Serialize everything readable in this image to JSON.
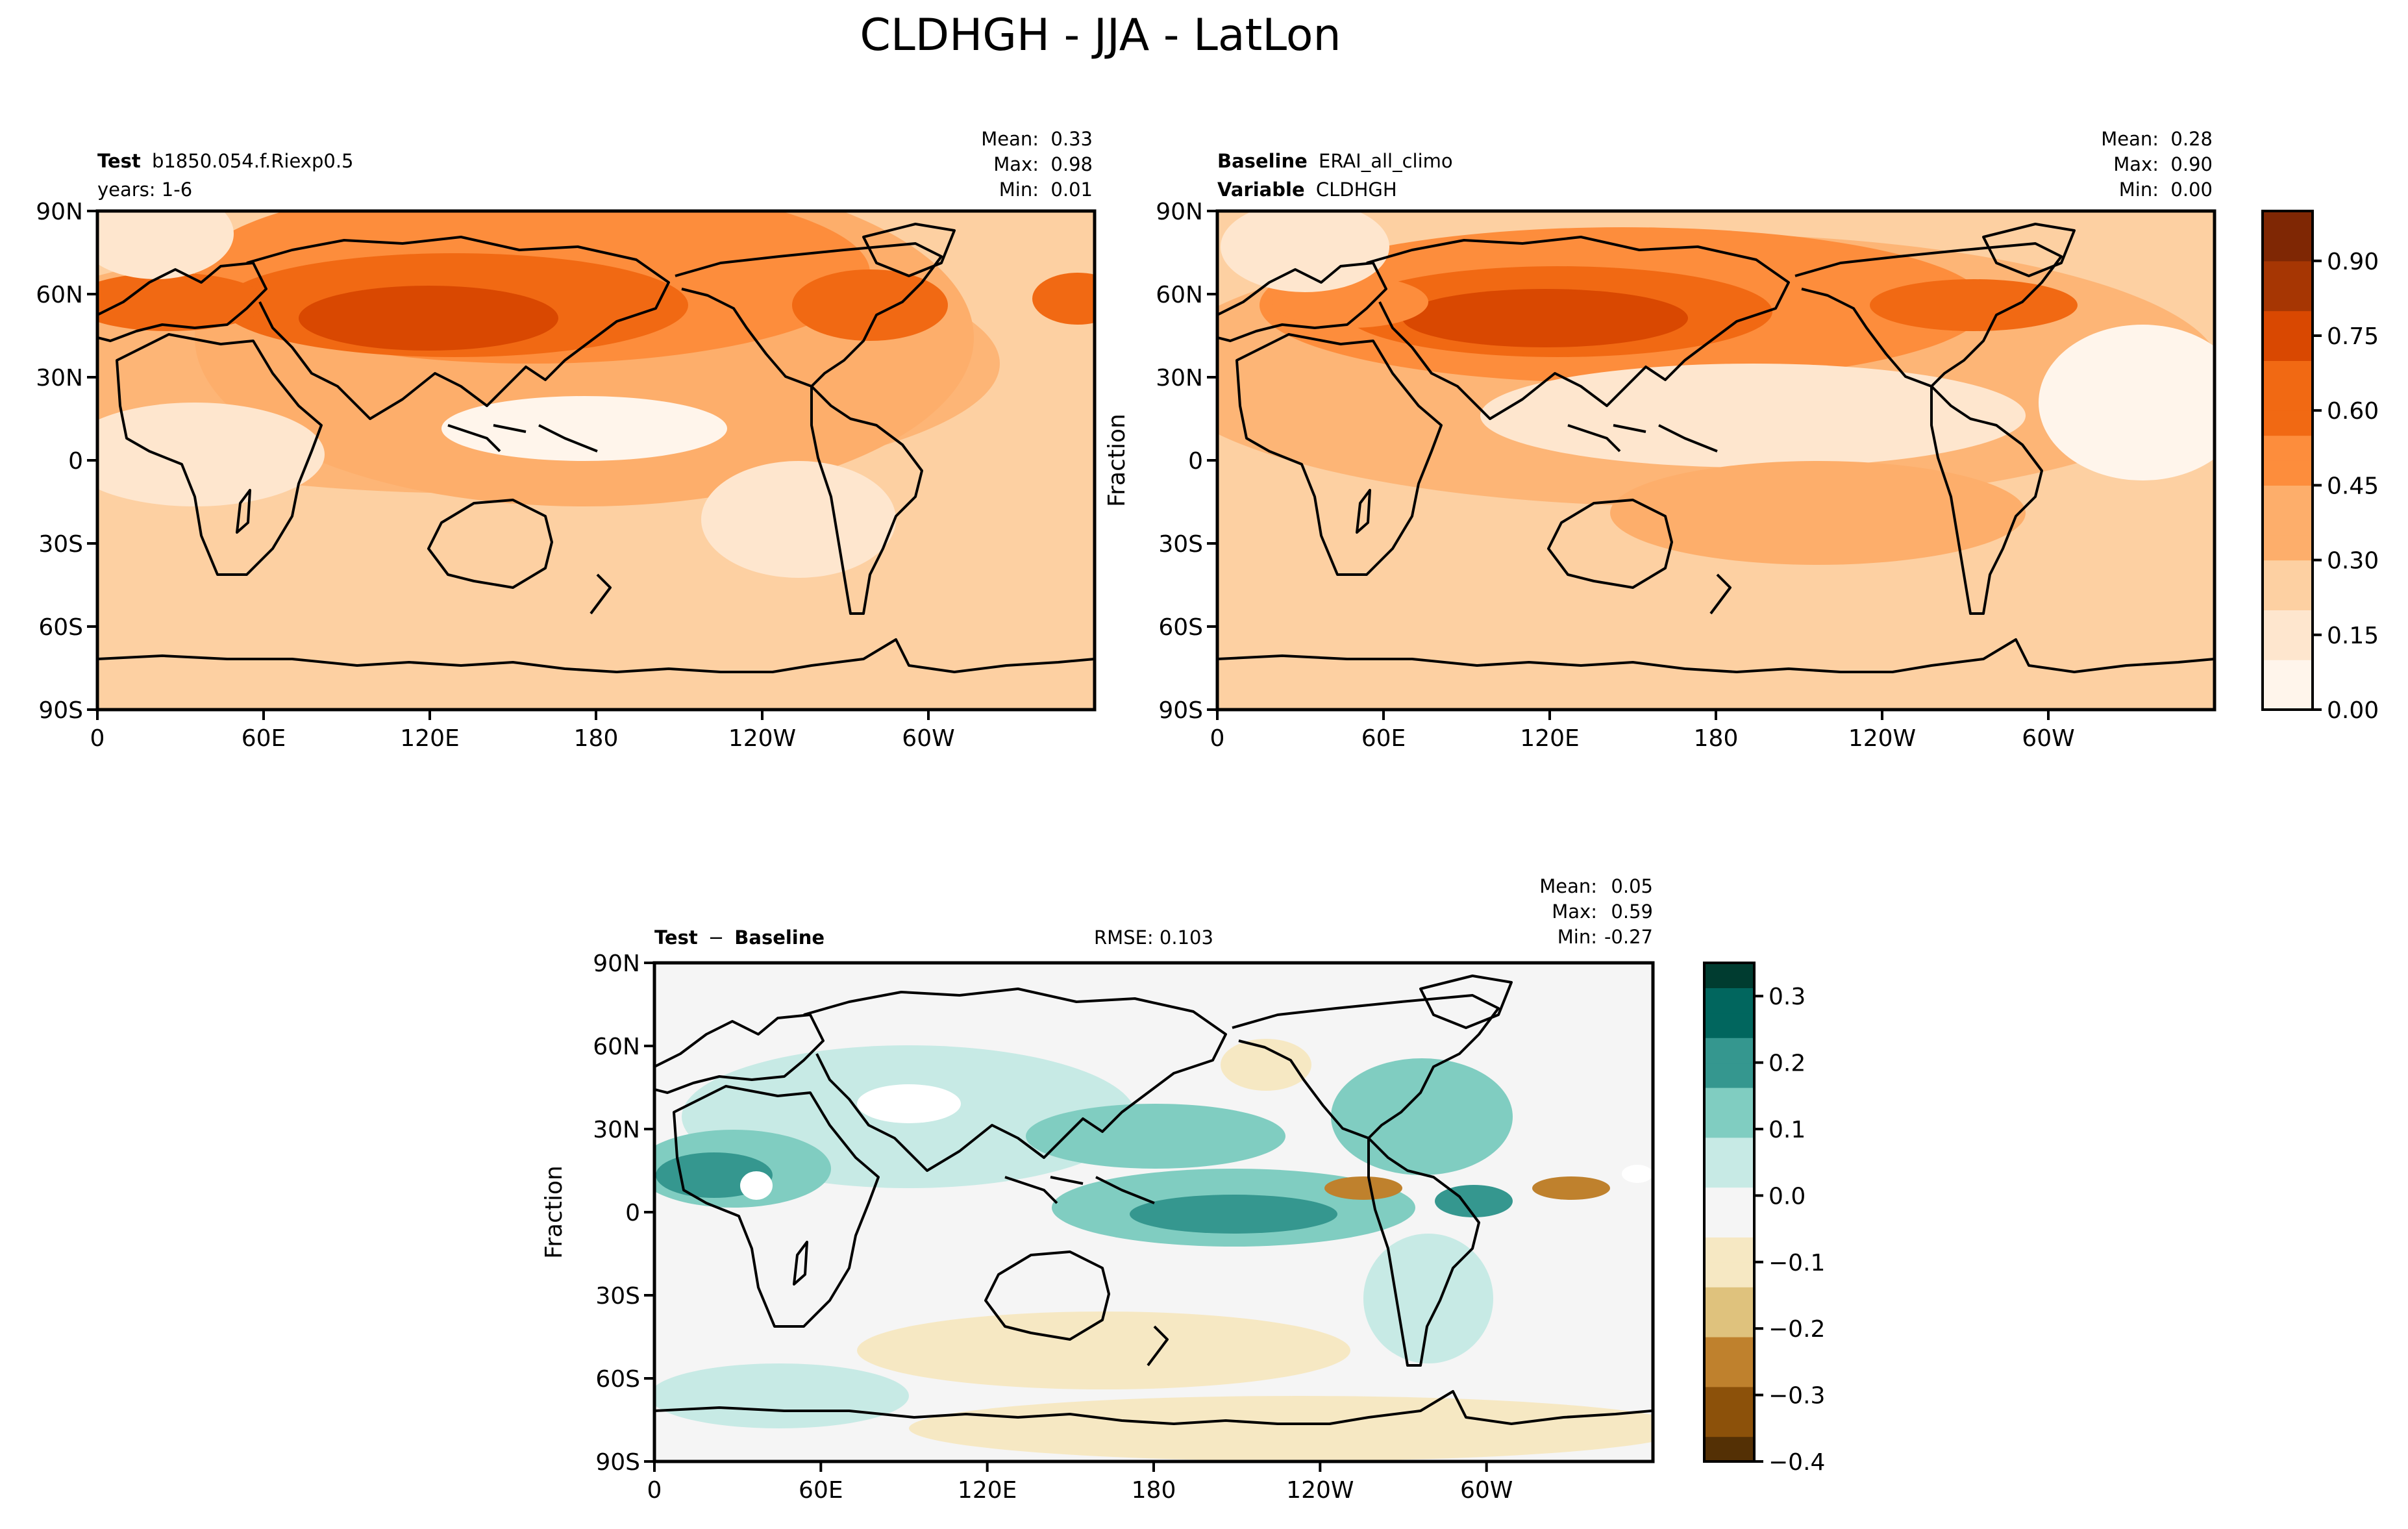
{
  "figure": {
    "title": "CLDHGH - JJA - LatLon"
  },
  "axes": {
    "lat_ticks": [
      "90N",
      "60N",
      "30N",
      "0",
      "30S",
      "60S",
      "90S"
    ],
    "lon_ticks": [
      "0",
      "60E",
      "120E",
      "180",
      "120W",
      "60W"
    ]
  },
  "panels": {
    "test": {
      "label_bold": "Test",
      "label_value": "b1850.054.f.Riexp0.5",
      "years": "years: 1-6",
      "stats": {
        "mean": "0.33",
        "max": "0.98",
        "min": "0.01"
      }
    },
    "baseline": {
      "label_bold": "Baseline",
      "label_value": "ERAI_all_climo",
      "variable_bold": "Variable",
      "variable_value": "CLDHGH",
      "ylabel": "Fraction",
      "stats": {
        "mean": "0.28",
        "max": "0.90",
        "min": "0.00"
      }
    },
    "diff": {
      "label_a": "Test",
      "label_op": "−",
      "label_b": "Baseline",
      "rmse": "RMSE: 0.103",
      "ylabel": "Fraction",
      "stats": {
        "mean": "0.05",
        "max": "0.59",
        "min": "-0.27"
      }
    }
  },
  "stat_labels": {
    "mean": "Mean:",
    "max": "Max:",
    "min": "Min:"
  },
  "colorbars": {
    "seq": {
      "ticks": [
        "0.00",
        "0.15",
        "0.30",
        "0.45",
        "0.60",
        "0.75",
        "0.90"
      ],
      "tick_values": [
        0.0,
        0.15,
        0.3,
        0.45,
        0.6,
        0.75,
        0.9
      ],
      "range": [
        0.0,
        1.0
      ],
      "colors_low_to_high": [
        "#fff5eb",
        "#fee6ce",
        "#fdd0a2",
        "#fdae6b",
        "#fd8d3c",
        "#f16913",
        "#d94801",
        "#a63603",
        "#7f2704"
      ]
    },
    "div": {
      "ticks": [
        "0.3",
        "0.2",
        "0.1",
        "0.0",
        "−0.1",
        "−0.2",
        "−0.3",
        "−0.4"
      ],
      "tick_values": [
        0.3,
        0.2,
        0.1,
        0.0,
        -0.1,
        -0.2,
        -0.3,
        -0.4
      ],
      "range": [
        -0.4,
        0.35
      ],
      "colors_low_to_high": [
        "#543005",
        "#8c510a",
        "#bf812d",
        "#dfc27d",
        "#f6e8c3",
        "#f5f5f5",
        "#c7eae5",
        "#80cdc1",
        "#35978f",
        "#01665e",
        "#003c30"
      ]
    }
  }
}
